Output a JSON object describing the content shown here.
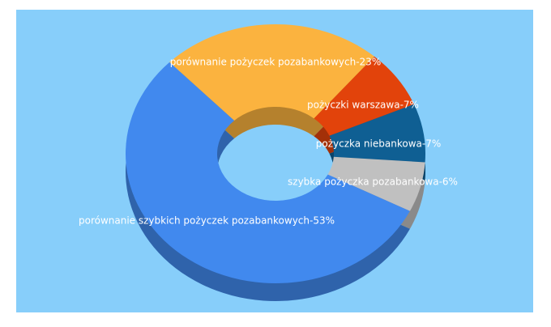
{
  "chart_data": {
    "type": "donut",
    "value_labels": [
      "porównanie pożyczek pozabankowych-23%",
      "pożyczki warszawa-7%",
      "pożyczka niebankowa-7%",
      "szybka pożyczka pozabankowa-6%",
      "porównanie szybkich pożyczek pozabankowych-53%"
    ],
    "values": [
      23,
      7,
      7,
      6,
      53
    ],
    "colors": [
      "#fbb33f",
      "#e2430b",
      "#0f5f93",
      "#c0c0c0",
      "#4189ee"
    ]
  }
}
